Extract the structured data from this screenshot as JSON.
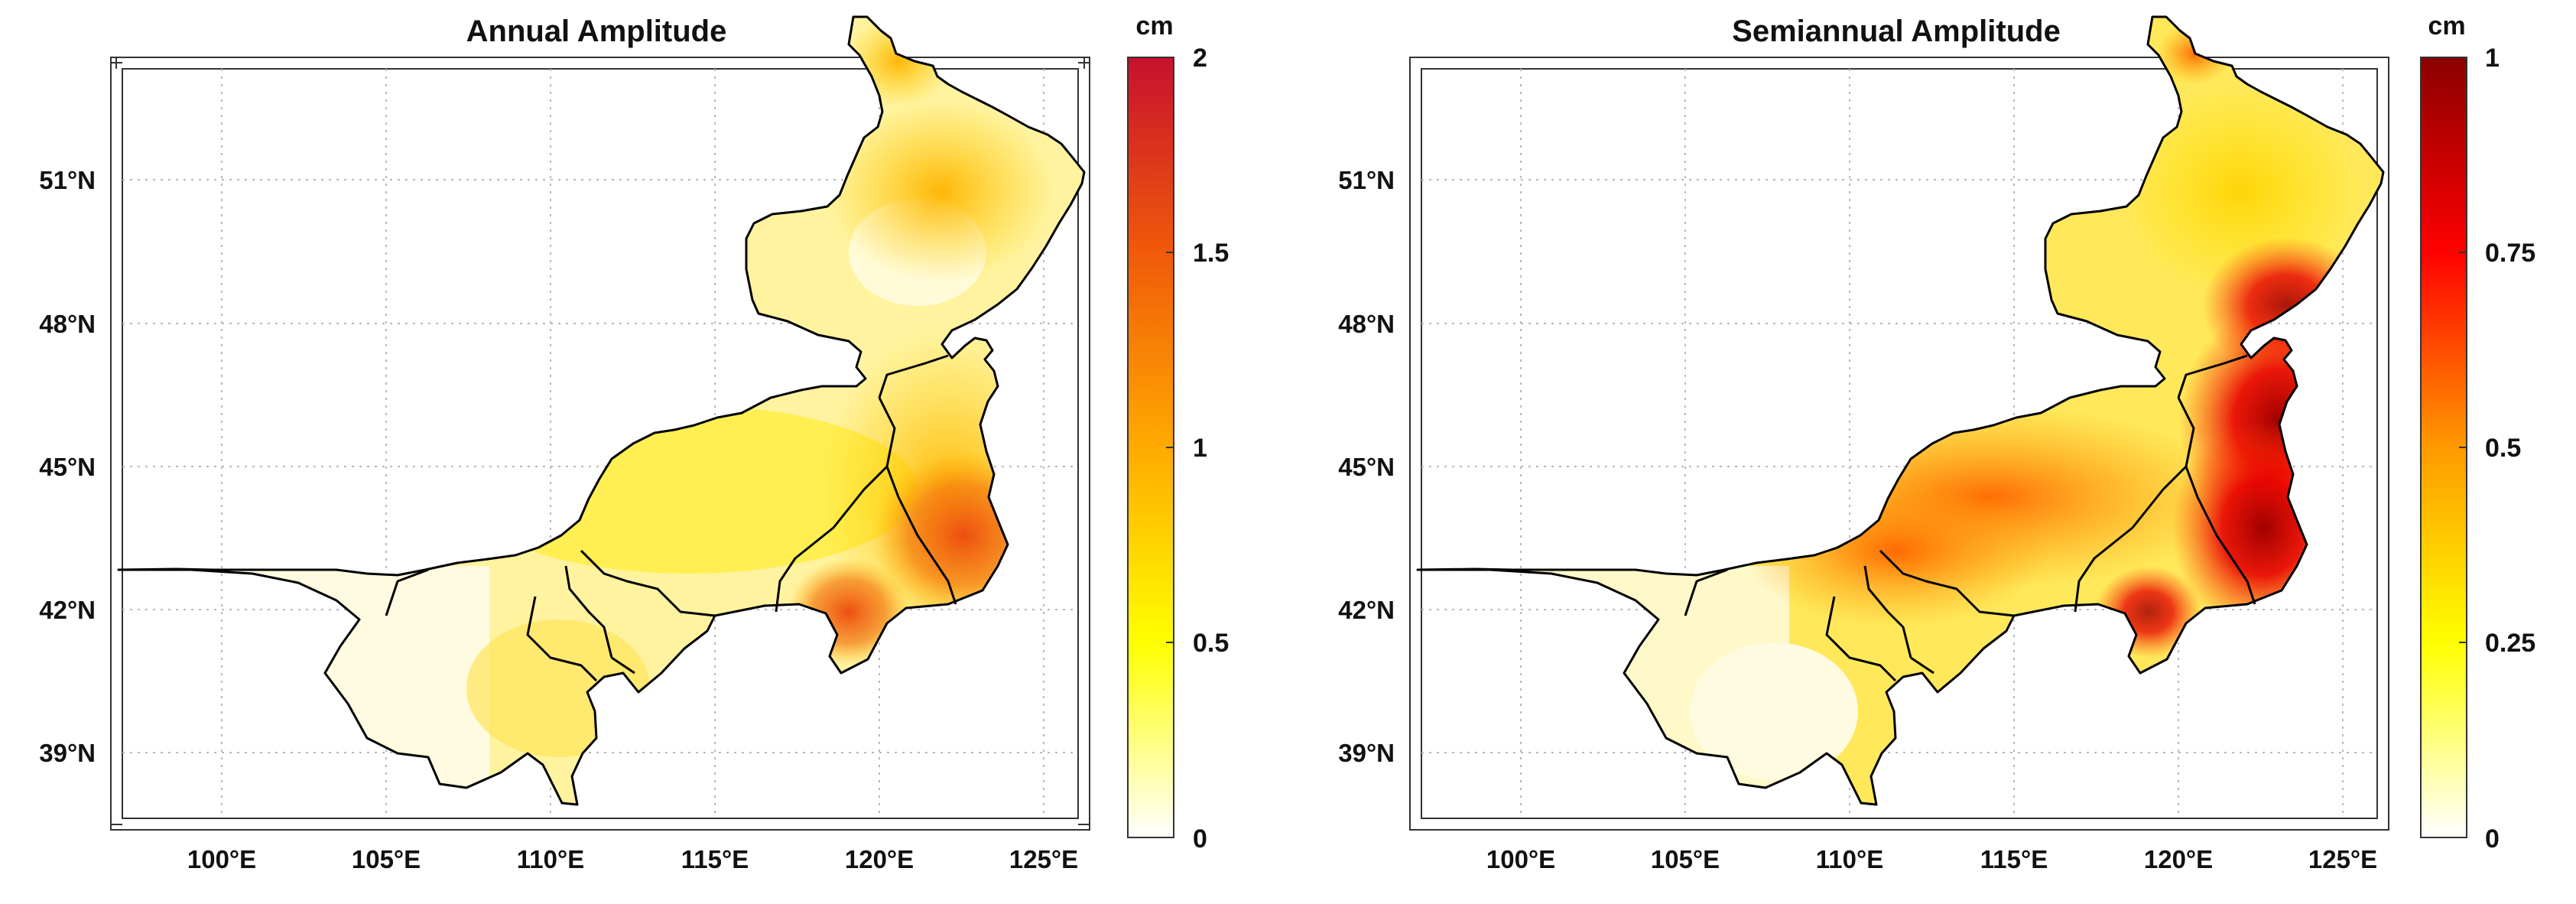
{
  "panels": [
    {
      "title": "Annual Amplitude",
      "colorbar": {
        "unit": "cm",
        "ticks": [
          "0",
          "0.5",
          "1",
          "1.5",
          "2"
        ],
        "min": 0,
        "max": 2
      },
      "lon_ticks": [
        "100°E",
        "105°E",
        "110°E",
        "115°E",
        "120°E",
        "125°E"
      ],
      "lat_ticks": [
        "51°N",
        "48°N",
        "45°N",
        "42°N",
        "39°N"
      ]
    },
    {
      "title": "Semiannual Amplitude",
      "colorbar": {
        "unit": "cm",
        "ticks": [
          "0",
          "0.25",
          "0.5",
          "0.75",
          "1"
        ],
        "min": 0,
        "max": 1
      },
      "lon_ticks": [
        "100°E",
        "105°E",
        "110°E",
        "115°E",
        "120°E",
        "125°E"
      ],
      "lat_ticks": [
        "51°N",
        "48°N",
        "45°N",
        "42°N",
        "39°N"
      ]
    }
  ],
  "colors": {
    "annual_scale": [
      "#ffffff",
      "#ffff00",
      "#ffaa00",
      "#f05a0a",
      "#c8102e"
    ],
    "semiannual_scale": [
      "#ffffff",
      "#ffff00",
      "#ff9a00",
      "#ff0000",
      "#8b0000"
    ]
  }
}
